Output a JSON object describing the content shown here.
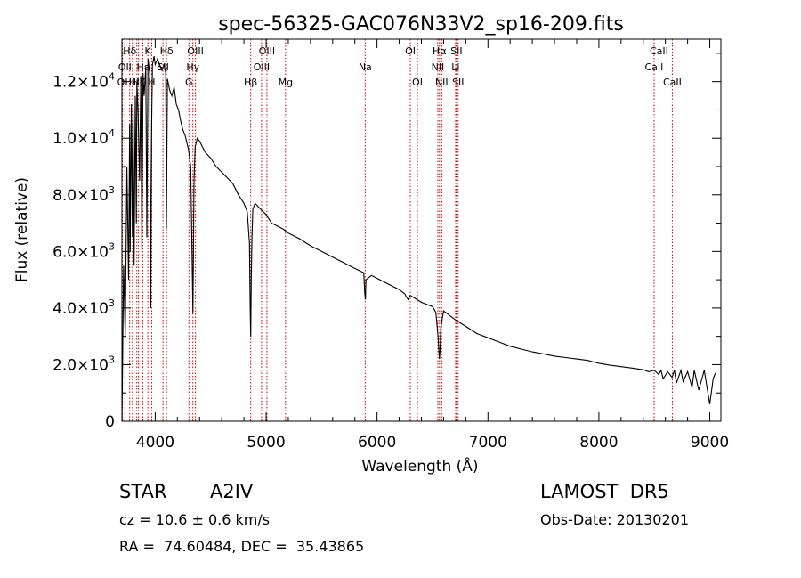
{
  "chart_data": {
    "type": "line",
    "title": "spec-56325-GAC076N33V2_sp16-209.fits",
    "xlabel": "Wavelength (Å)",
    "ylabel": "Flux (relative)",
    "xlim": [
      3700,
      9100
    ],
    "ylim": [
      0,
      13500
    ],
    "xticks": [
      4000,
      5000,
      6000,
      7000,
      8000,
      9000
    ],
    "yticks": [
      {
        "value": 0,
        "label": "0"
      },
      {
        "value": 2000,
        "mant": "2.0",
        "exp": "3"
      },
      {
        "value": 4000,
        "mant": "4.0",
        "exp": "3"
      },
      {
        "value": 6000,
        "mant": "6.0",
        "exp": "3"
      },
      {
        "value": 8000,
        "mant": "8.0",
        "exp": "3"
      },
      {
        "value": 10000,
        "mant": "1.0",
        "exp": "4"
      },
      {
        "value": 12000,
        "mant": "1.2",
        "exp": "4"
      }
    ],
    "grid": false,
    "line_color": "#000000",
    "marker_color": "#cc0000",
    "series": [
      {
        "x": [
          3700,
          3715,
          3730,
          3745,
          3760,
          3770,
          3775,
          3785,
          3795,
          3800,
          3810,
          3820,
          3830,
          3835,
          3845,
          3860,
          3870,
          3880,
          3890,
          3900,
          3915,
          3925,
          3935,
          3950,
          3960,
          3968,
          3975,
          3990,
          4000,
          4020,
          4040,
          4060,
          4080,
          4095,
          4101,
          4110,
          4130,
          4150,
          4170,
          4190,
          4210,
          4230,
          4250,
          4270,
          4300,
          4320,
          4340,
          4350,
          4360,
          4380,
          4400,
          4450,
          4500,
          4550,
          4600,
          4650,
          4700,
          4750,
          4800,
          4830,
          4850,
          4856,
          4861,
          4866,
          4872,
          4880,
          4900,
          4950,
          5000,
          5050,
          5100,
          5150,
          5200,
          5250,
          5300,
          5400,
          5500,
          5600,
          5700,
          5800,
          5880,
          5890,
          5895,
          5900,
          5950,
          6000,
          6100,
          6200,
          6250,
          6280,
          6300,
          6400,
          6500,
          6530,
          6550,
          6557,
          6563,
          6569,
          6575,
          6600,
          6650,
          6700,
          6800,
          6900,
          7000,
          7100,
          7200,
          7300,
          7400,
          7500,
          7600,
          7700,
          7800,
          7900,
          8000,
          8100,
          8200,
          8300,
          8400,
          8450,
          8500,
          8540,
          8560,
          8580,
          8620,
          8660,
          8680,
          8700,
          8740,
          8760,
          8800,
          8840,
          8860,
          8900,
          8950,
          9000,
          9030,
          9050
        ],
        "y": [
          0,
          5500,
          3000,
          9000,
          5000,
          10500,
          6000,
          11200,
          6500,
          11000,
          5500,
          11500,
          7000,
          12000,
          11000,
          8500,
          12200,
          6000,
          12300,
          11500,
          12500,
          6500,
          12800,
          12300,
          4000,
          10500,
          12600,
          12900,
          12600,
          12800,
          12600,
          12400,
          12600,
          12300,
          6800,
          12100,
          11700,
          11500,
          11800,
          11200,
          11000,
          10600,
          10300,
          10100,
          9600,
          9000,
          3800,
          8500,
          9700,
          10000,
          9900,
          9500,
          9300,
          9000,
          8800,
          8600,
          8400,
          8000,
          7700,
          7400,
          6300,
          4000,
          3000,
          5000,
          6500,
          7500,
          7700,
          7500,
          7300,
          7000,
          6900,
          6800,
          6650,
          6550,
          6450,
          6200,
          6000,
          5800,
          5600,
          5400,
          5250,
          4500,
          4300,
          5000,
          5150,
          5050,
          4850,
          4650,
          4500,
          4300,
          4450,
          4200,
          4050,
          3850,
          3000,
          2500,
          2200,
          2600,
          3300,
          3900,
          3750,
          3600,
          3350,
          3100,
          2950,
          2800,
          2650,
          2550,
          2450,
          2380,
          2300,
          2250,
          2200,
          2150,
          2050,
          1980,
          1930,
          1880,
          1820,
          1750,
          1800,
          1650,
          1800,
          1500,
          1750,
          1550,
          1800,
          1350,
          1800,
          1400,
          1750,
          1200,
          1800,
          1100,
          1800,
          600,
          1500,
          1700
        ]
      }
    ],
    "lines": [
      {
        "label": "Hδ",
        "x": 3770,
        "row": 0
      },
      {
        "label": "OII",
        "x": 3727,
        "row": 1
      },
      {
        "label": "OI",
        "x": 3705,
        "row": 2
      },
      {
        "label": "H",
        "x": 3795,
        "row": 2
      },
      {
        "label": "HI",
        "x": 3835,
        "row": 2
      },
      {
        "label": "K",
        "x": 3934,
        "row": 0
      },
      {
        "label": "Hε",
        "x": 3889,
        "row": 1
      },
      {
        "label": "H",
        "x": 3968,
        "row": 2
      },
      {
        "label": "Hδ",
        "x": 4102,
        "row": 0
      },
      {
        "label": "SII",
        "x": 4070,
        "row": 1
      },
      {
        "label": "Hζ",
        "x": 3850,
        "row": 2
      },
      {
        "label": "OIII",
        "x": 4363,
        "row": 0
      },
      {
        "label": "Hγ",
        "x": 4340,
        "row": 1
      },
      {
        "label": "G",
        "x": 4304,
        "row": 2
      },
      {
        "label": "OIII",
        "x": 5007,
        "row": 0
      },
      {
        "label": "OIII",
        "x": 4959,
        "row": 1
      },
      {
        "label": "Hβ",
        "x": 4861,
        "row": 2
      },
      {
        "label": "Mg",
        "x": 5175,
        "row": 2
      },
      {
        "label": "Na",
        "x": 5893,
        "row": 1
      },
      {
        "label": "OI",
        "x": 6300,
        "row": 0
      },
      {
        "label": "OI",
        "x": 6364,
        "row": 2
      },
      {
        "label": "Hα",
        "x": 6563,
        "row": 0
      },
      {
        "label": "NII",
        "x": 6548,
        "row": 1
      },
      {
        "label": "NII",
        "x": 6583,
        "row": 2
      },
      {
        "label": "SII",
        "x": 6716,
        "row": 0
      },
      {
        "label": "Li",
        "x": 6708,
        "row": 1
      },
      {
        "label": "SII",
        "x": 6731,
        "row": 2
      },
      {
        "label": "CaII",
        "x": 8542,
        "row": 0
      },
      {
        "label": "CaII",
        "x": 8498,
        "row": 1
      },
      {
        "label": "CaII",
        "x": 8662,
        "row": 2
      }
    ]
  },
  "info": {
    "star": "STAR",
    "spectral_type": "A2IV",
    "cz": "cz = 10.6 ± 0.6 km/s",
    "coords": "RA =  74.60484, DEC =  35.43865",
    "survey": "LAMOST  DR5",
    "obs_date": "Obs-Date: 20130201"
  }
}
